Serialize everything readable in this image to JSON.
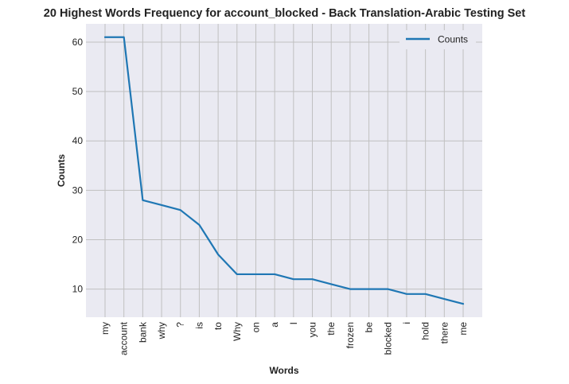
{
  "chart_data": {
    "type": "line",
    "title": "20 Highest Words Frequency for account_blocked - Back Translation-Arabic Testing Set",
    "xlabel": "Words",
    "ylabel": "Counts",
    "categories": [
      "my",
      "account",
      "bank",
      "why",
      "?",
      "is",
      "to",
      "Why",
      "on",
      "a",
      "I",
      "you",
      "the",
      "frozen",
      "be",
      "blocked",
      "i",
      "hold",
      "there",
      "me"
    ],
    "series": [
      {
        "name": "Counts",
        "values": [
          61,
          61,
          28,
          27,
          26,
          23,
          17,
          13,
          13,
          13,
          12,
          12,
          11,
          10,
          10,
          10,
          9,
          9,
          8,
          7
        ],
        "color": "#1f77b4"
      }
    ],
    "yticks": [
      10,
      20,
      30,
      40,
      50,
      60
    ],
    "ylim": [
      4.3,
      63.7
    ],
    "grid": true,
    "legend_position": "top-right",
    "background_color": "#eaeaf2",
    "grid_color": "#c0c0c0"
  }
}
